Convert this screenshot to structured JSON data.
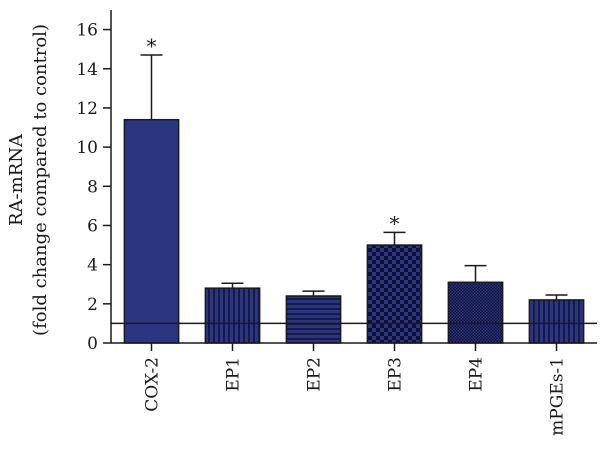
{
  "chart_data": {
    "type": "bar",
    "ylabel_line1": "RA-mRNA",
    "ylabel_line2": "(fold change compared to control)",
    "categories": [
      "COX-2",
      "EP1",
      "EP2",
      "EP3",
      "EP4",
      "mPGEs-1"
    ],
    "values": [
      11.4,
      2.8,
      2.4,
      5.0,
      3.1,
      2.2
    ],
    "errors": [
      3.3,
      0.25,
      0.25,
      0.65,
      0.85,
      0.25
    ],
    "significance": [
      "*",
      "",
      "",
      "*",
      "",
      ""
    ],
    "patterns": [
      "solid",
      "vertical-stripes",
      "horizontal-stripes",
      "checker",
      "fine-grid",
      "vertical-stripes"
    ],
    "reference_line": 1,
    "ylim": [
      0,
      17
    ],
    "yticks": [
      0,
      2,
      4,
      6,
      8,
      10,
      12,
      14,
      16
    ],
    "colors": {
      "bar": "#2b3580",
      "bar_dark": "#141a4a",
      "axis": "#1a1a1a"
    }
  }
}
